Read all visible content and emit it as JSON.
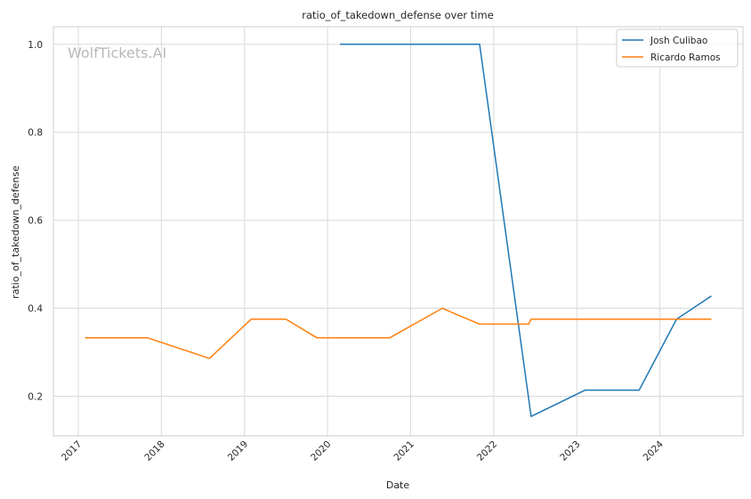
{
  "chart_data": {
    "type": "line",
    "title": "ratio_of_takedown_defense over time",
    "xlabel": "Date",
    "ylabel": "ratio_of_takedown_defense",
    "watermark": "WolfTickets.AI",
    "xlim": [
      2016.7,
      2025.0
    ],
    "ylim": [
      0.11,
      1.04
    ],
    "x_ticks": [
      2017,
      2018,
      2019,
      2020,
      2021,
      2022,
      2023,
      2024
    ],
    "x_tick_labels": [
      "2017",
      "2018",
      "2019",
      "2020",
      "2021",
      "2022",
      "2023",
      "2024"
    ],
    "y_ticks": [
      0.2,
      0.4,
      0.6,
      0.8,
      1.0
    ],
    "y_tick_labels": [
      "0.2",
      "0.4",
      "0.6",
      "0.8",
      "1.0"
    ],
    "grid": true,
    "legend_position": "top-right",
    "series": [
      {
        "name": "Josh Culibao",
        "color": "#1f77b4",
        "points": [
          [
            2020.15,
            1.0
          ],
          [
            2021.83,
            1.0
          ],
          [
            2022.45,
            0.154
          ],
          [
            2023.1,
            0.214
          ],
          [
            2023.75,
            0.214
          ],
          [
            2024.2,
            0.375
          ],
          [
            2024.62,
            0.428
          ]
        ]
      },
      {
        "name": "Ricardo Ramos",
        "color": "#ff7f0e",
        "points": [
          [
            2017.08,
            0.333
          ],
          [
            2017.83,
            0.333
          ],
          [
            2018.58,
            0.286
          ],
          [
            2019.08,
            0.375
          ],
          [
            2019.5,
            0.375
          ],
          [
            2019.87,
            0.333
          ],
          [
            2020.75,
            0.333
          ],
          [
            2021.38,
            0.4
          ],
          [
            2021.83,
            0.364
          ],
          [
            2022.42,
            0.364
          ],
          [
            2022.45,
            0.375
          ],
          [
            2024.62,
            0.375
          ]
        ]
      }
    ]
  }
}
